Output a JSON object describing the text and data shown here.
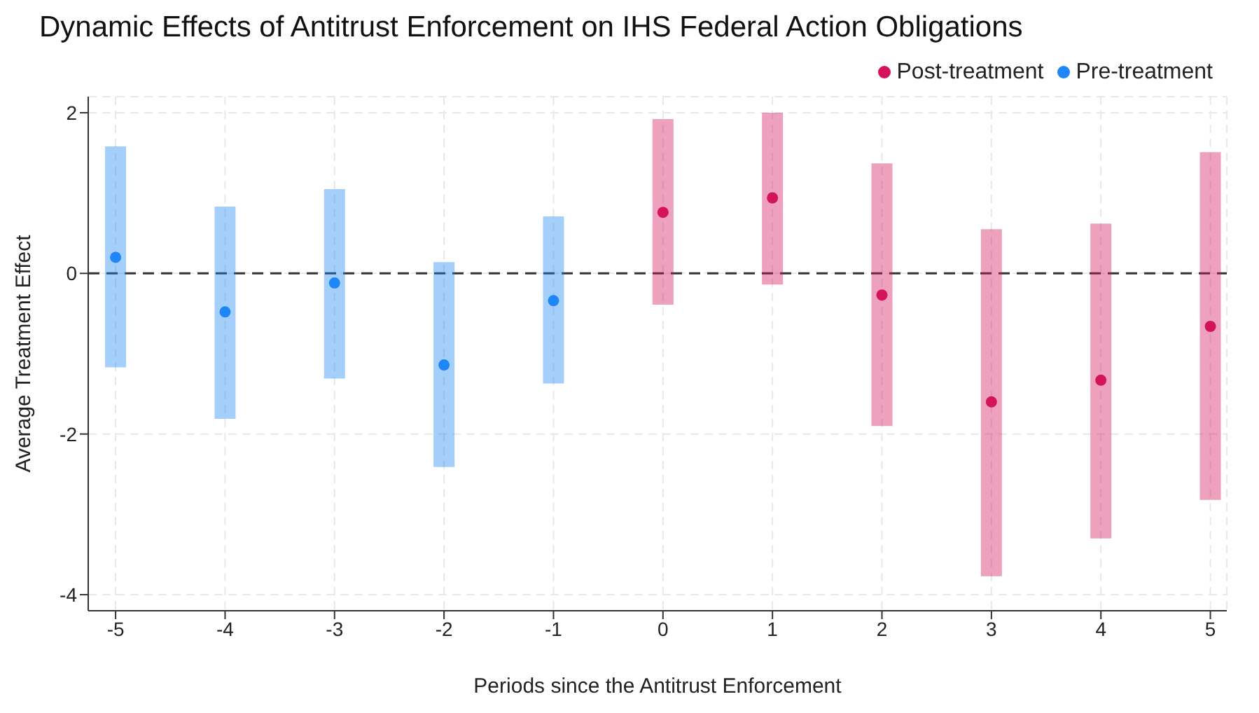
{
  "chart_data": {
    "type": "scatter",
    "title": "Dynamic Effects of Antitrust Enforcement on IHS Federal Action Obligations",
    "xlabel": "Periods since the Antitrust Enforcement",
    "ylabel": "Average Treatment Effect",
    "series": [
      {
        "name": "Pre-treatment",
        "color": "#1f86f5",
        "x": [
          -5,
          -4,
          -3,
          -2,
          -1
        ],
        "values": [
          0.2,
          -0.48,
          -0.12,
          -1.14,
          -0.34
        ],
        "errors": [
          [
            -1.17,
            1.58
          ],
          [
            -1.81,
            0.83
          ],
          [
            -1.31,
            1.05
          ],
          [
            -2.41,
            0.14
          ],
          [
            -1.37,
            0.71
          ]
        ]
      },
      {
        "name": "Post-treatment",
        "color": "#d4145a",
        "x": [
          0,
          1,
          2,
          3,
          4,
          5
        ],
        "values": [
          0.76,
          0.94,
          -0.27,
          -1.6,
          -1.33,
          -0.66
        ],
        "errors": [
          [
            -0.39,
            1.92
          ],
          [
            -0.14,
            2.0
          ],
          [
            -1.9,
            1.37
          ],
          [
            -3.77,
            0.55
          ],
          [
            -3.3,
            0.62
          ],
          [
            -2.82,
            1.51
          ]
        ]
      }
    ],
    "xlim": [
      -5.25,
      5.15
    ],
    "xticks": [
      -5,
      -4,
      -3,
      -2,
      -1,
      0,
      1,
      2,
      3,
      4,
      5
    ],
    "ylim": [
      -4.2,
      2.2
    ],
    "yticks": [
      -4,
      -2,
      0,
      2
    ],
    "ref_lines": [
      {
        "axis": "y",
        "value": 0,
        "color": "#333333",
        "line_style": "dashed"
      }
    ],
    "grid": true,
    "legend": "top right",
    "marker": "circle"
  }
}
